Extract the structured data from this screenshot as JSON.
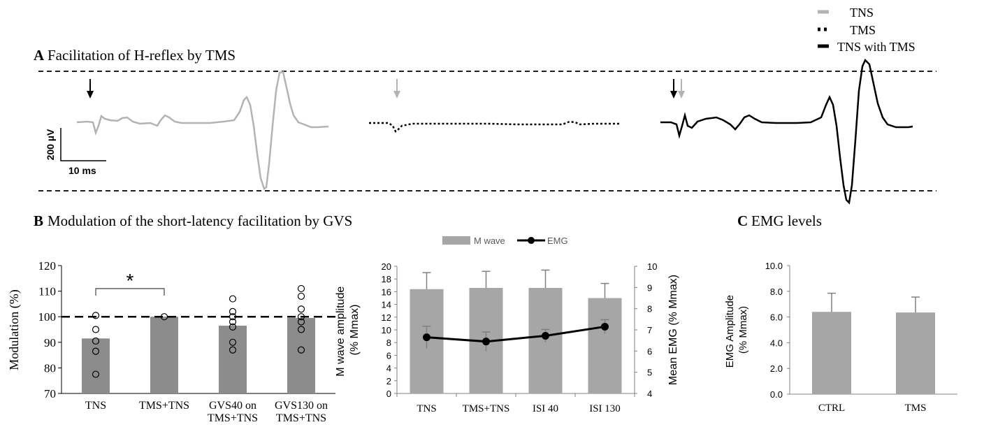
{
  "panelA": {
    "letter": "A",
    "title": "Facilitation  of H-reflex  by TMS",
    "legend": [
      "TNS",
      "TMS",
      "TNS with TMS"
    ],
    "scale_y": "200 µV",
    "scale_x": "10 ms"
  },
  "panelB": {
    "letter": "B",
    "title": "Modulation of the short-latency  facilitation  by GVS"
  },
  "panelC": {
    "letter": "C",
    "title": "EMG levels"
  },
  "colors": {
    "gray_bar": "#a6a6a6",
    "dark_bar": "#8c8c8c",
    "trace_gray": "#b3b3b3",
    "black": "#000000"
  },
  "chart_data": [
    {
      "type": "bar",
      "ylabel": "Modulation (%)",
      "ylim": [
        70,
        120
      ],
      "yticks": [
        70,
        80,
        90,
        100,
        110,
        120
      ],
      "categories": [
        "TNS",
        "TMS+TNS",
        "GVS40 on\nTMS+TNS",
        "GVS130 on\nTMS+TNS"
      ],
      "values": [
        91.5,
        100,
        96.5,
        99.5
      ],
      "points": [
        [
          100.5,
          95,
          90.5,
          86.5,
          77.5
        ],
        [
          100
        ],
        [
          107,
          102,
          100,
          98,
          96,
          90,
          87
        ],
        [
          111,
          108,
          103,
          100,
          98,
          95,
          87
        ]
      ],
      "reference_line": 100,
      "significance": {
        "from": "TNS",
        "to": "TMS+TNS",
        "mark": "*"
      }
    },
    {
      "type": "bar",
      "legend": [
        "M wave",
        "EMG"
      ],
      "categories": [
        "TNS",
        "TMS+TNS",
        "ISI  40",
        "ISI  130"
      ],
      "series": [
        {
          "name": "M wave",
          "values": [
            16.4,
            16.6,
            16.6,
            15.0
          ],
          "errors": [
            2.6,
            2.6,
            2.8,
            2.3
          ]
        },
        {
          "name": "EMG",
          "values": [
            6.65,
            6.45,
            6.72,
            7.15
          ],
          "errors": [
            0.52,
            0.45,
            0.3,
            0.33
          ]
        }
      ],
      "ylabel": "M wave amplitude\n(% Mmax)",
      "ylim": [
        0,
        20
      ],
      "yticks": [
        0,
        2,
        4,
        6,
        8,
        10,
        12,
        14,
        16,
        18,
        20
      ],
      "y2label": "Mean EMG (% Mmax)",
      "y2lim": [
        4,
        10
      ],
      "y2ticks": [
        4,
        5,
        6,
        7,
        8,
        9,
        10
      ]
    },
    {
      "type": "bar",
      "categories": [
        "CTRL",
        "TMS"
      ],
      "values": [
        6.4,
        6.35
      ],
      "errors": [
        1.45,
        1.2
      ],
      "ylabel": "EMG Amplitude\n(% Mmax)",
      "ylim": [
        0,
        10
      ],
      "yticks": [
        "0.0",
        "2.0",
        "4.0",
        "6.0",
        "8.0",
        "10.0"
      ]
    }
  ]
}
